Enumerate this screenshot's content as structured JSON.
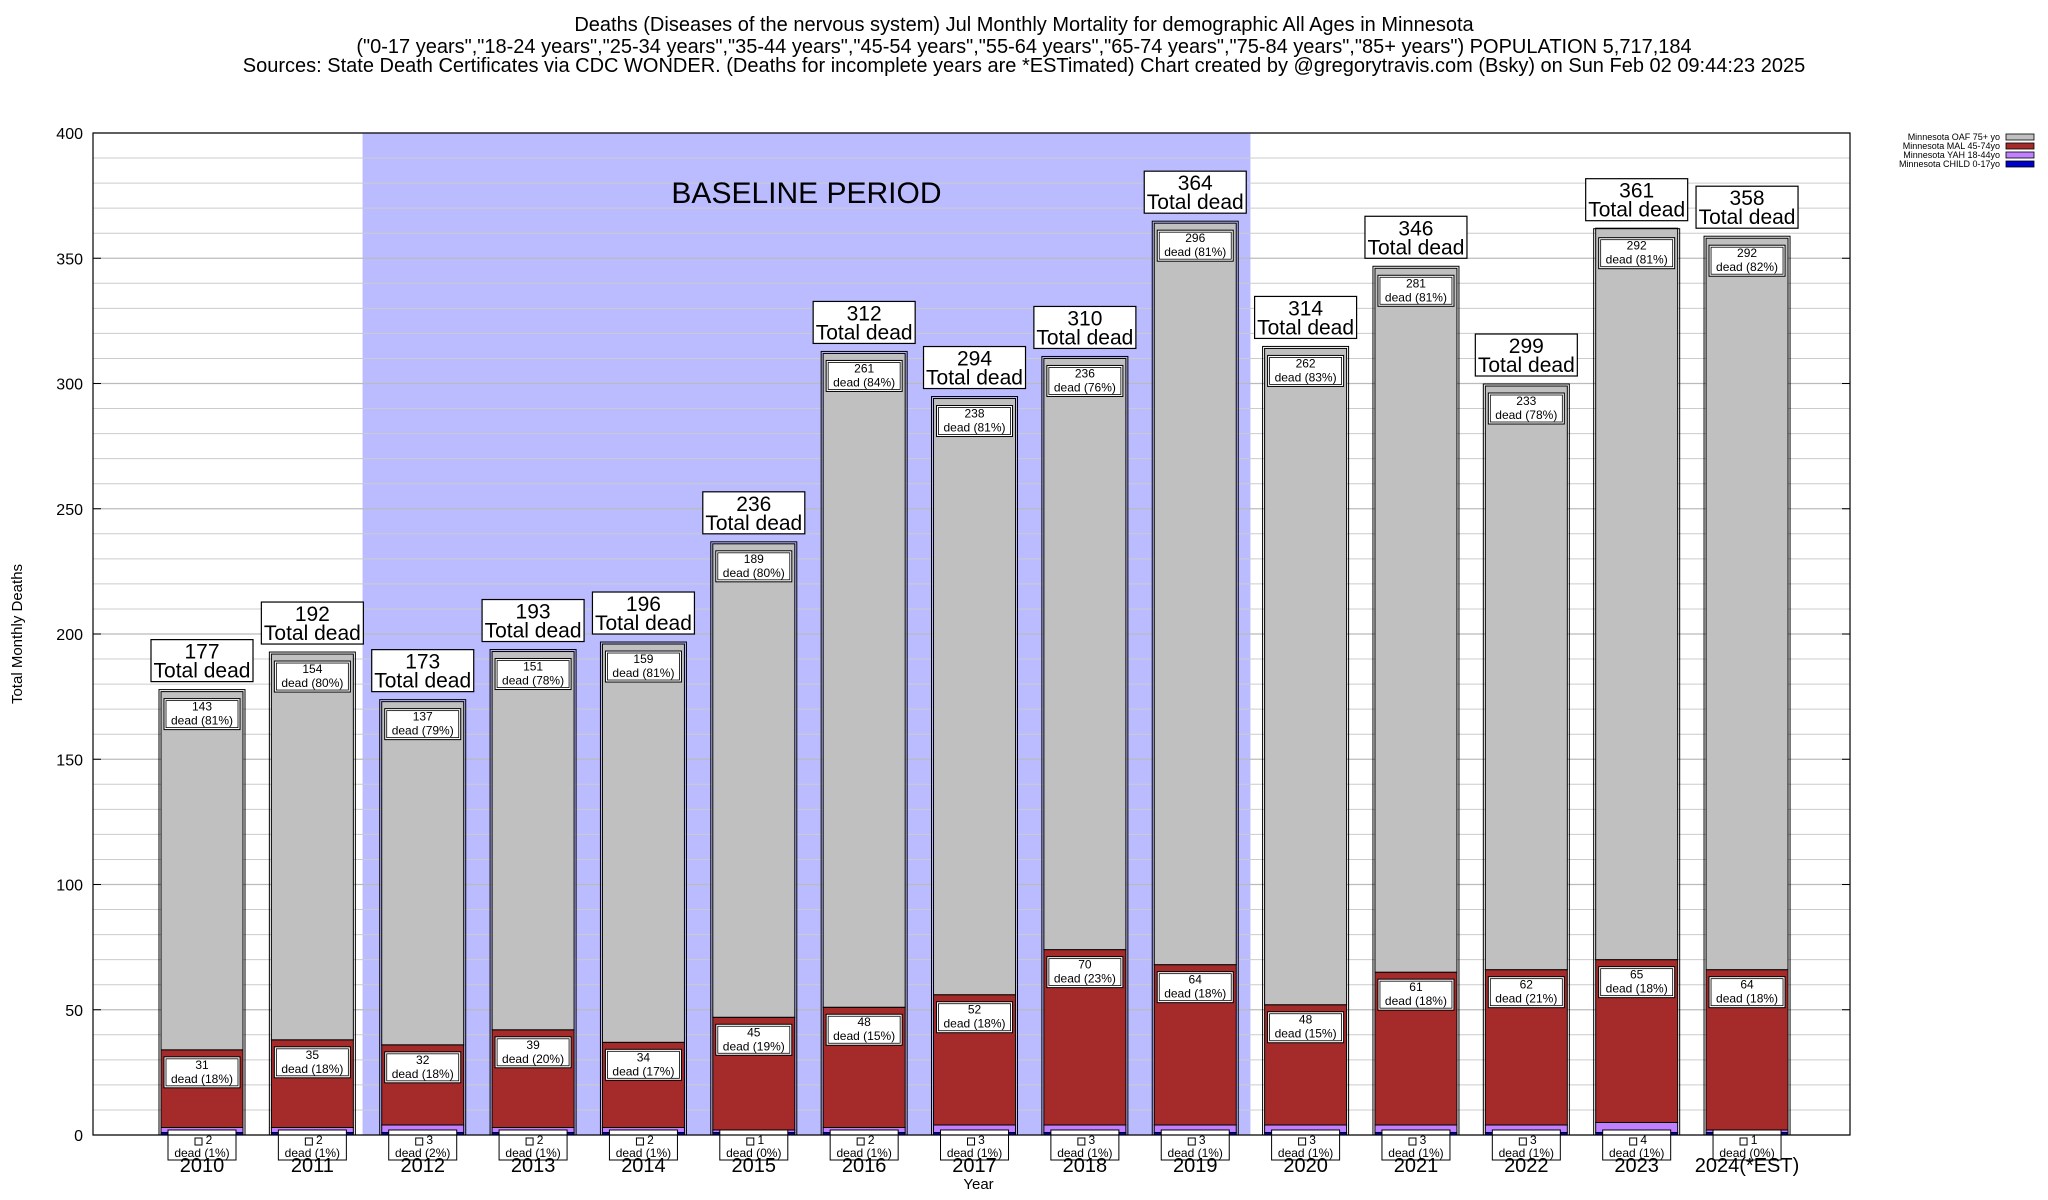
{
  "header": {
    "line1": "Deaths (Diseases of the nervous system) Jul Monthly Mortality for demographic All Ages in Minnesota",
    "line2": "(\"0-17 years\",\"18-24 years\",\"25-34 years\",\"35-44 years\",\"45-54 years\",\"55-64 years\",\"65-74 years\",\"75-84 years\",\"85+ years\") POPULATION 5,717,184",
    "line3": "Sources: State Death Certificates via CDC WONDER. (Deaths for incomplete years are *ESTimated)                Chart created by @gregorytravis.com (Bsky) on Sun Feb 02 09:44:23 2025"
  },
  "colors": {
    "oaf": "#c0c0c0",
    "mal": "#a52a2a",
    "yah": "#c080ff",
    "child": "#0000cd",
    "baseline": "#bbbbff"
  },
  "chart_data": {
    "type": "bar",
    "stacked": true,
    "xlabel": "Year",
    "ylabel": "Total Monthly Deaths",
    "ylim": [
      0,
      400
    ],
    "yticks": [
      0,
      50,
      100,
      150,
      200,
      250,
      300,
      350,
      400
    ],
    "grid": true,
    "legend_position": "top-right",
    "baseline_label": "BASELINE PERIOD",
    "baseline_range": [
      "2012",
      "2019"
    ],
    "total_label": "Total dead",
    "categories": [
      "2010",
      "2011",
      "2012",
      "2013",
      "2014",
      "2015",
      "2016",
      "2017",
      "2018",
      "2019",
      "2020",
      "2021",
      "2022",
      "2023",
      "2024(*EST)"
    ],
    "totals": [
      177,
      192,
      173,
      193,
      196,
      236,
      312,
      294,
      310,
      364,
      314,
      346,
      299,
      361,
      358
    ],
    "series": [
      {
        "key": "child",
        "name": "Minnesota CHILD 0-17yo",
        "values": [
          1,
          1,
          1,
          1,
          1,
          1,
          1,
          1,
          1,
          1,
          1,
          1,
          1,
          1,
          1
        ]
      },
      {
        "key": "yah",
        "name": "Minnesota YAH 18-44yo",
        "values": [
          2,
          2,
          3,
          2,
          2,
          1,
          2,
          3,
          3,
          3,
          3,
          3,
          3,
          4,
          1
        ],
        "labels": [
          "2\ndead (1%)",
          "2\ndead (1%)",
          "3\ndead (2%)",
          "2\ndead (1%)",
          "2\ndead (1%)",
          "1\ndead (0%)",
          "2\ndead (1%)",
          "3\ndead (1%)",
          "3\ndead (1%)",
          "3\ndead (1%)",
          "3\ndead (1%)",
          "3\ndead (1%)",
          "3\ndead (1%)",
          "4\ndead (1%)",
          "1\ndead (0%)"
        ]
      },
      {
        "key": "mal",
        "name": "Minnesota MAL 45-74yo",
        "values": [
          31,
          35,
          32,
          39,
          34,
          45,
          48,
          52,
          70,
          64,
          48,
          61,
          62,
          65,
          64
        ],
        "labels": [
          "31\ndead (18%)",
          "35\ndead (18%)",
          "32\ndead (18%)",
          "39\ndead (20%)",
          "34\ndead (17%)",
          "45\ndead (19%)",
          "48\ndead (15%)",
          "52\ndead (18%)",
          "70\ndead (23%)",
          "64\ndead (18%)",
          "48\ndead (15%)",
          "61\ndead (18%)",
          "62\ndead (21%)",
          "65\ndead (18%)",
          "64\ndead (18%)"
        ]
      },
      {
        "key": "oaf",
        "name": "Minnesota OAF 75+ yo",
        "values": [
          143,
          154,
          137,
          151,
          159,
          189,
          261,
          238,
          236,
          296,
          262,
          281,
          233,
          292,
          292
        ],
        "labels": [
          "143\ndead (81%)",
          "154\ndead (80%)",
          "137\ndead (79%)",
          "151\ndead (78%)",
          "159\ndead (81%)",
          "189\ndead (80%)",
          "261\ndead (84%)",
          "238\ndead (81%)",
          "236\ndead (76%)",
          "296\ndead (81%)",
          "262\ndead (83%)",
          "281\ndead (81%)",
          "233\ndead (78%)",
          "292\ndead (81%)",
          "292\ndead (82%)"
        ]
      }
    ],
    "legend": [
      {
        "key": "oaf",
        "name": "Minnesota OAF 75+ yo"
      },
      {
        "key": "mal",
        "name": "Minnesota MAL 45-74yo"
      },
      {
        "key": "yah",
        "name": "Minnesota YAH 18-44yo"
      },
      {
        "key": "child",
        "name": "Minnesota CHILD 0-17yo"
      }
    ]
  }
}
